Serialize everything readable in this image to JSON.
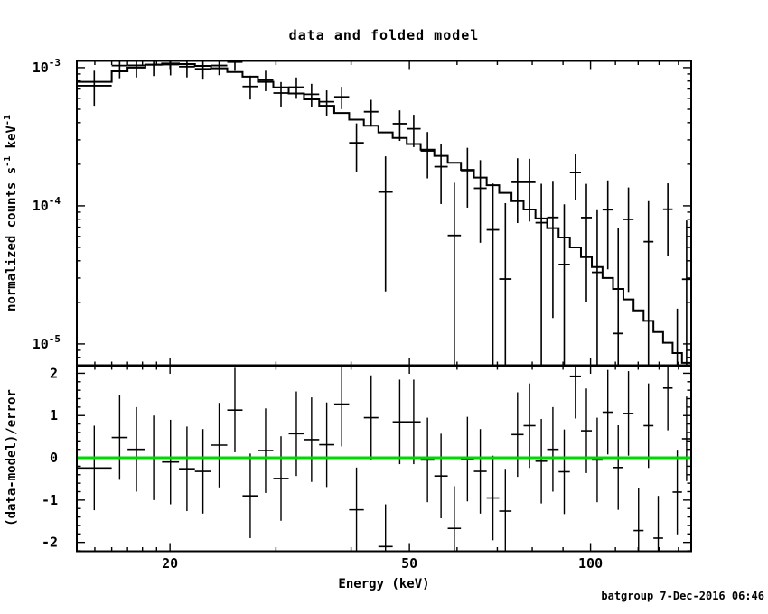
{
  "window": {
    "title": "data and folded model",
    "footer": {
      "text": "batgroup  7-Dec-2016 06:46",
      "color": "#000080"
    }
  },
  "chart_data": {
    "type": "line",
    "title": "data and folded model",
    "xlabel": "Energy (keV)",
    "x_scale": "log",
    "x_range": [
      14.0,
      147.0
    ],
    "x_ticks_major": [
      20,
      50,
      100
    ],
    "x_ticks_major_labels": [
      "20",
      "50",
      "100"
    ],
    "x_ticks_minor": [
      15,
      16,
      17,
      18,
      19,
      30,
      40,
      60,
      70,
      80,
      90,
      110,
      120,
      130,
      140
    ],
    "bin_edges_kev": [
      14.0,
      16.0,
      17.0,
      18.2,
      19.4,
      20.7,
      22.0,
      23.4,
      24.9,
      26.4,
      28.0,
      29.7,
      31.5,
      33.4,
      35.4,
      37.5,
      39.7,
      42.0,
      44.4,
      46.9,
      49.5,
      52.2,
      55.0,
      57.9,
      60.9,
      64.0,
      67.2,
      70.5,
      73.9,
      77.4,
      81.0,
      84.7,
      88.5,
      92.4,
      96.4,
      100.5,
      104.7,
      109.0,
      113.4,
      117.9,
      122.5,
      127.2,
      132.0,
      136.9,
      141.9,
      147.0
    ],
    "panels": [
      {
        "name": "spectrum",
        "ylabel_segments": [
          {
            "t": "normalized counts s"
          },
          {
            "t": "-1",
            "sup": true
          },
          {
            "t": " keV"
          },
          {
            "t": "-1",
            "sup": true
          }
        ],
        "y_scale": "log",
        "y_range": [
          6.96e-06,
          0.001118
        ],
        "y_ticks_major_exp": [
          -3,
          -4,
          -5
        ],
        "series": [
          {
            "name": "folded model",
            "style": "histogram",
            "values": [
              0.00079,
              0.00094,
              0.001,
              0.00105,
              0.00107,
              0.00106,
              0.00103,
              0.00099,
              0.00093,
              0.00086,
              0.00079,
              0.00072,
              0.00065,
              0.00059,
              0.00053,
              0.00047,
              0.00042,
              0.00038,
              0.00034,
              0.00031,
              0.00028,
              0.000255,
              0.00023,
              0.000205,
              0.000182,
              0.00016,
              0.000141,
              0.000124,
              0.000108,
              9.4e-05,
              8.1e-05,
              6.9e-05,
              5.9e-05,
              5e-05,
              4.25e-05,
              3.6e-05,
              3e-05,
              2.5e-05,
              2.1e-05,
              1.75e-05,
              1.47e-05,
              1.22e-05,
              1.02e-05,
              8.6e-06,
              7.3e-06
            ]
          },
          {
            "name": "data",
            "style": "cross",
            "values": [
              0.00074,
              0.001035,
              0.001038,
              0.00105,
              0.001053,
              0.001017,
              0.000979,
              0.001036,
              0.001097,
              0.000731,
              0.000813,
              0.000655,
              0.000722,
              0.000642,
              0.000567,
              0.000614,
              0.000286,
              0.00048,
              0.000126,
              0.000393,
              0.000361,
              0.00025,
              0.000192,
              6.1e-05,
              0.00018,
              0.000134,
              6.7e-05,
              2.95e-05,
              0.000148,
              0.000148,
              7.55e-05,
              8.24e-05,
              3.76e-05,
              0.000174,
              8.22e-05,
              3.3e-05,
              9.37e-05,
              1.19e-05,
              7.98e-05,
              -7.7e-05,
              5.5e-05,
              -8.7e-05,
              9.44e-05,
              -3.2e-05,
              2.94e-05
            ],
            "errors": [
              0.00021,
              0.000197,
              0.000189,
              0.000181,
              0.000174,
              0.000167,
              0.00016,
              0.000154,
              0.000148,
              0.000143,
              0.000137,
              0.000132,
              0.000127,
              0.000122,
              0.000118,
              0.000113,
              0.000109,
              0.000105,
              0.000102,
              9.8e-05,
              9.5e-05,
              9.2e-05,
              8.9e-05,
              8.6e-05,
              8.3e-05,
              8e-05,
              7.8e-05,
              7.5e-05,
              7.3e-05,
              7.1e-05,
              6.9e-05,
              6.7e-05,
              6.5e-05,
              6.4e-05,
              6.2e-05,
              6e-05,
              5.9e-05,
              5.7e-05,
              5.6e-05,
              5.5e-05,
              5.3e-05,
              5.2e-05,
              5.1e-05,
              5e-05,
              4.9e-05
            ]
          }
        ]
      },
      {
        "name": "residuals",
        "ylabel": "(data-model)/error",
        "y_scale": "linear",
        "y_range": [
          -2.21,
          2.18
        ],
        "y_ticks_major": [
          -2,
          -1,
          0,
          1,
          2
        ],
        "y_ticks_major_labels": [
          "-2",
          "-1",
          "0",
          "1",
          "2"
        ],
        "y_tick_minor_step": 0.2,
        "zero_line_color": "#00d900",
        "series": [
          {
            "name": "(data-model)/error",
            "style": "cross",
            "values": [
              -0.24,
              0.48,
              0.2,
              0.0,
              -0.1,
              -0.26,
              -0.32,
              0.3,
              1.13,
              -0.9,
              0.17,
              -0.49,
              0.57,
              0.43,
              0.31,
              1.27,
              -1.23,
              0.95,
              -2.1,
              0.85,
              0.85,
              -0.05,
              -0.43,
              -1.67,
              -0.03,
              -0.32,
              -0.95,
              -1.26,
              0.55,
              0.76,
              -0.08,
              0.2,
              -0.33,
              1.93,
              0.64,
              -0.05,
              1.08,
              -0.23,
              1.05,
              -1.72,
              0.76,
              -1.9,
              1.65,
              -0.81,
              0.45
            ],
            "error_half_width": 1.0
          }
        ]
      }
    ]
  }
}
